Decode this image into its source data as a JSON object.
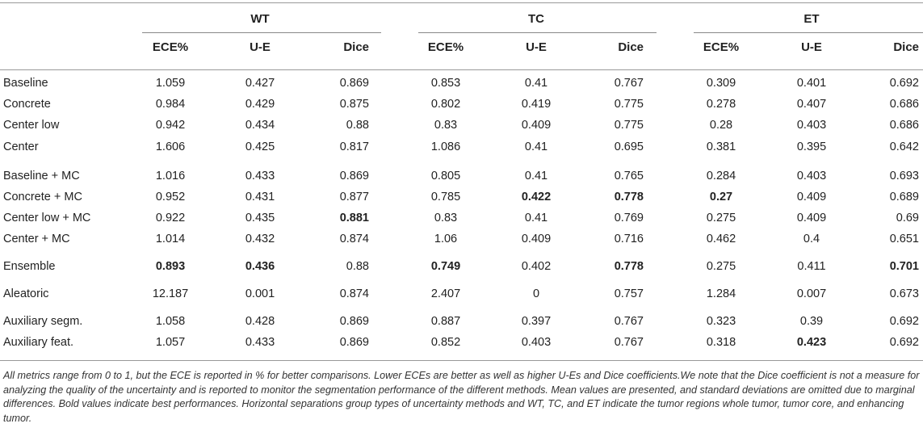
{
  "groups": [
    "WT",
    "TC",
    "ET"
  ],
  "columns": [
    "ECE%",
    "U-E",
    "Dice",
    "ECE%",
    "U-E",
    "Dice",
    "ECE%",
    "U-E",
    "Dice"
  ],
  "rows": [
    {
      "label": "Baseline",
      "values": [
        "1.059",
        "0.427",
        "0.869",
        "0.853",
        "0.41",
        "0.767",
        "0.309",
        "0.401",
        "0.692"
      ],
      "bold": []
    },
    {
      "label": "Concrete",
      "values": [
        "0.984",
        "0.429",
        "0.875",
        "0.802",
        "0.419",
        "0.775",
        "0.278",
        "0.407",
        "0.686"
      ],
      "bold": []
    },
    {
      "label": "Center low",
      "values": [
        "0.942",
        "0.434",
        "0.88",
        "0.83",
        "0.409",
        "0.775",
        "0.28",
        "0.403",
        "0.686"
      ],
      "bold": []
    },
    {
      "label": "Center",
      "values": [
        "1.606",
        "0.425",
        "0.817",
        "1.086",
        "0.41",
        "0.695",
        "0.381",
        "0.395",
        "0.642"
      ],
      "bold": []
    },
    {
      "label": "Baseline + MC",
      "values": [
        "1.016",
        "0.433",
        "0.869",
        "0.805",
        "0.41",
        "0.765",
        "0.284",
        "0.403",
        "0.693"
      ],
      "bold": []
    },
    {
      "label": "Concrete + MC",
      "values": [
        "0.952",
        "0.431",
        "0.877",
        "0.785",
        "0.422",
        "0.778",
        "0.27",
        "0.409",
        "0.689"
      ],
      "bold": [
        4,
        5,
        6
      ]
    },
    {
      "label": "Center low + MC",
      "values": [
        "0.922",
        "0.435",
        "0.881",
        "0.83",
        "0.41",
        "0.769",
        "0.275",
        "0.409",
        "0.69"
      ],
      "bold": [
        2
      ]
    },
    {
      "label": "Center + MC",
      "values": [
        "1.014",
        "0.432",
        "0.874",
        "1.06",
        "0.409",
        "0.716",
        "0.462",
        "0.4",
        "0.651"
      ],
      "bold": []
    },
    {
      "label": "Ensemble",
      "values": [
        "0.893",
        "0.436",
        "0.88",
        "0.749",
        "0.402",
        "0.778",
        "0.275",
        "0.411",
        "0.701"
      ],
      "bold": [
        0,
        1,
        3,
        5,
        8
      ]
    },
    {
      "label": "Aleatoric",
      "values": [
        "12.187",
        "0.001",
        "0.874",
        "2.407",
        "0",
        "0.757",
        "1.284",
        "0.007",
        "0.673"
      ],
      "bold": []
    },
    {
      "label": "Auxiliary segm.",
      "values": [
        "1.058",
        "0.428",
        "0.869",
        "0.887",
        "0.397",
        "0.767",
        "0.323",
        "0.39",
        "0.692"
      ],
      "bold": []
    },
    {
      "label": "Auxiliary feat.",
      "values": [
        "1.057",
        "0.433",
        "0.869",
        "0.852",
        "0.403",
        "0.767",
        "0.318",
        "0.423",
        "0.692"
      ],
      "bold": [
        7
      ]
    }
  ],
  "footnote": "All metrics range from 0 to 1, but the ECE is reported in % for better comparisons. Lower ECEs are better as well as higher U-Es and Dice coefficients.We note that the Dice coefficient is not a measure for analyzing the quality of the uncertainty and is reported to monitor the segmentation performance of the different methods. Mean values are presented, and standard deviations are omitted due to marginal differences. Bold values indicate best performances. Horizontal separations group types of uncertainty methods and WT, TC, and ET indicate the tumor regions whole tumor, tumor core, and enhancing tumor."
}
